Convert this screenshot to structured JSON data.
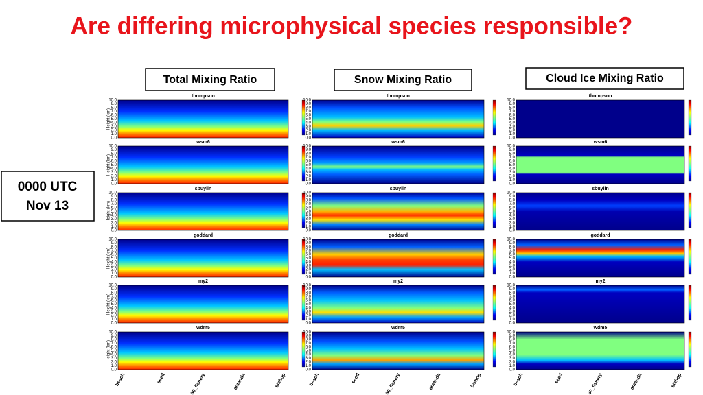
{
  "title": "Are differing microphysical species responsible?",
  "side_label": [
    "0000 UTC",
    "Nov 13"
  ],
  "columns": [
    "Total Mixing Ratio",
    "Snow Mixing Ratio",
    "Cloud Ice Mixing Ratio"
  ],
  "panels": [
    "thompson",
    "wsm6",
    "sbuylin",
    "goddard",
    "my2",
    "wdm5"
  ],
  "y_axis_label": "Height (km)",
  "y_ticks": [
    "0.0",
    "1.0",
    "2.0",
    "3.0",
    "4.0",
    "5.0",
    "6.0",
    "7.0",
    "8.0",
    "9.0",
    "10.0"
  ],
  "x_labels": [
    "beach",
    "seed",
    "30_fishery",
    "amanda",
    "bishop"
  ]
}
